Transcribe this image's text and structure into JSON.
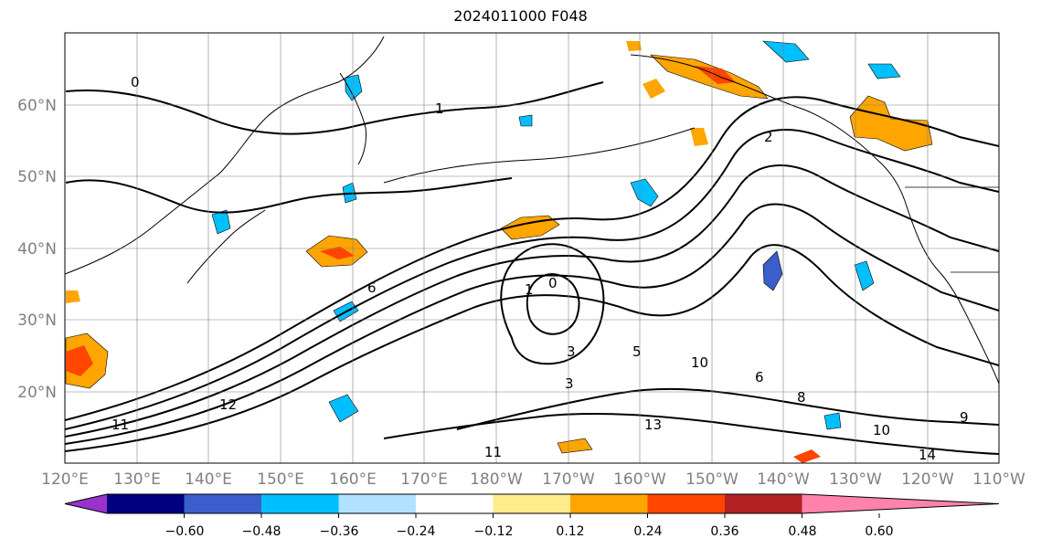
{
  "title": "2024011000 F048",
  "map": {
    "lon_ticks": [
      "120°E",
      "130°E",
      "140°E",
      "150°E",
      "160°E",
      "170°E",
      "180°W",
      "170°W",
      "160°W",
      "150°W",
      "140°W",
      "130°W",
      "120°W",
      "110°W"
    ],
    "lat_ticks": [
      "20°N",
      "30°N",
      "40°N",
      "50°N",
      "60°N"
    ],
    "contour_labels": [
      "0",
      "1",
      "2",
      "3",
      "3",
      "5",
      "6",
      "6",
      "8",
      "9",
      "10",
      "10",
      "11",
      "11",
      "12",
      "13",
      "14",
      "1",
      "0"
    ]
  },
  "colorbar": {
    "colors": [
      "#9932cc",
      "#000080",
      "#3a5fcd",
      "#00bfff",
      "#b0e2ff",
      "#ffffff",
      "#ffec8b",
      "#ffa500",
      "#ff4500",
      "#b22222",
      "#ff82ab"
    ],
    "tick_labels": [
      "−0.60",
      "−0.48",
      "−0.36",
      "−0.24",
      "−0.12",
      "0.12",
      "0.24",
      "0.36",
      "0.48",
      "0.60"
    ]
  },
  "colors": {
    "land": "#000000",
    "grid": "#808080",
    "contour": "#000000"
  }
}
